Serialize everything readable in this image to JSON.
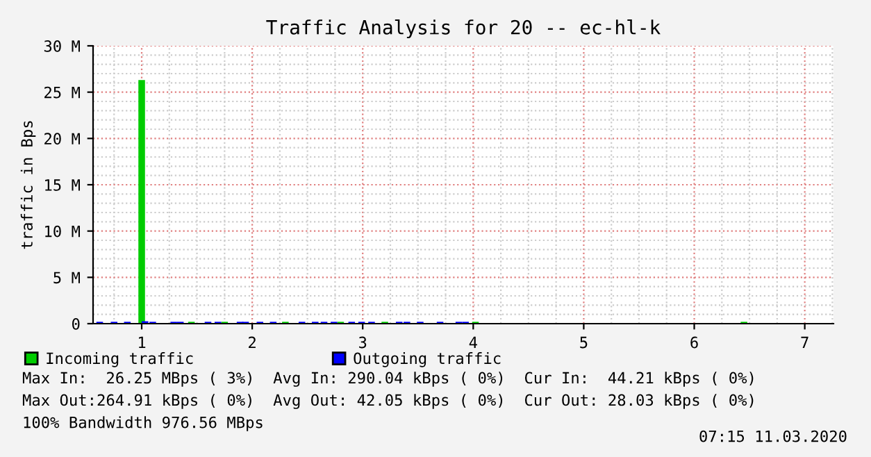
{
  "chart_data": {
    "type": "bar",
    "title": "Traffic Analysis for 20 -- ec-hl-k",
    "ylabel": "traffic in Bps",
    "xlim": [
      0.56,
      7.26
    ],
    "xticks": [
      1,
      2,
      3,
      4,
      5,
      6,
      7
    ],
    "ylim": [
      0,
      30000000
    ],
    "yticks": [
      {
        "value": 0,
        "label": "0"
      },
      {
        "value": 5000000,
        "label": "5 M"
      },
      {
        "value": 10000000,
        "label": "10 M"
      },
      {
        "value": 15000000,
        "label": "15 M"
      },
      {
        "value": 20000000,
        "label": "20 M"
      },
      {
        "value": 25000000,
        "label": "25 M"
      },
      {
        "value": 30000000,
        "label": "30 M"
      }
    ],
    "grid": true,
    "legend": "bottom",
    "series": [
      {
        "name": "Incoming traffic",
        "color": "#00cc00",
        "x": [
          1.0,
          1.45,
          1.75,
          2.3,
          2.8,
          3.2,
          4.02,
          6.45
        ],
        "values": [
          26300000,
          200000,
          200000,
          200000,
          200000,
          200000,
          200000,
          200000
        ]
      },
      {
        "name": "Outgoing traffic",
        "color": "#0000ff",
        "x": [
          0.62,
          0.75,
          0.87,
          1.03,
          1.1,
          1.29,
          1.35,
          1.6,
          1.69,
          1.89,
          1.94,
          2.07,
          2.19,
          2.45,
          2.57,
          2.65,
          2.74,
          2.9,
          2.99,
          3.08,
          3.33,
          3.4,
          3.52,
          3.7,
          3.87,
          3.93
        ],
        "values": [
          200000,
          200000,
          200000,
          260000,
          200000,
          200000,
          200000,
          200000,
          200000,
          200000,
          200000,
          200000,
          200000,
          200000,
          200000,
          200000,
          200000,
          200000,
          200000,
          200000,
          200000,
          200000,
          200000,
          200000,
          200000,
          200000
        ]
      }
    ],
    "annotations": [
      "Max In:  26.25 MBps ( 3%)  Avg In: 290.04 kBps ( 0%)  Cur In:  44.21 kBps ( 0%)",
      "Max Out:264.91 kBps ( 0%)  Avg Out: 42.05 kBps ( 0%)  Cur Out: 28.03 kBps ( 0%)",
      "100% Bandwidth 976.56 MBps",
      "07:15 11.03.2020"
    ]
  }
}
